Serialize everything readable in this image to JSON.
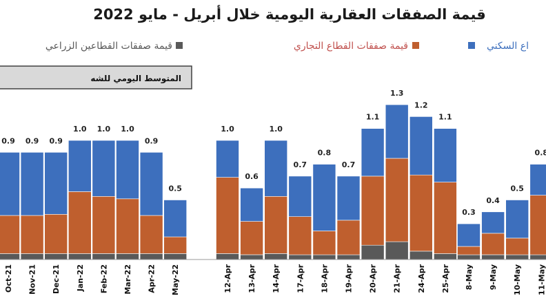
{
  "chart_data": {
    "type": "bar",
    "title": "قيمة الصفقات العقارية اليومية خلال أبريل - مايو 2022",
    "legend": [
      {
        "name": "قيمة صفقات القطاعين الزراعي",
        "color": "#595959"
      },
      {
        "name": "قيمة صفقات القطاع التجاري",
        "color": "#bf5f2e"
      },
      {
        "name": "اع السكني",
        "color": "#3d6fbd"
      }
    ],
    "monthly_box_label": "المتوسط اليومي للشه",
    "categories": [
      "Oct-21",
      "Nov-21",
      "Dec-21",
      "Jan-22",
      "Feb-22",
      "Mar-22",
      "Apr-22",
      "May-22",
      "12-Apr",
      "13-Apr",
      "14-Apr",
      "17-Apr",
      "18-Apr",
      "19-Apr",
      "20-Apr",
      "21-Apr",
      "24-Apr",
      "25-Apr",
      "8-May",
      "9-May",
      "10-May",
      "11-May"
    ],
    "groups": [
      {
        "name": "monthly",
        "categories": [
          "Oct-21",
          "Nov-21",
          "Dec-21",
          "Jan-22",
          "Feb-22",
          "Mar-22",
          "Apr-22",
          "May-22"
        ]
      },
      {
        "name": "daily",
        "categories": [
          "12-Apr",
          "13-Apr",
          "14-Apr",
          "17-Apr",
          "18-Apr",
          "19-Apr",
          "20-Apr",
          "21-Apr",
          "24-Apr",
          "25-Apr",
          "8-May",
          "9-May",
          "10-May",
          "11-May"
        ]
      }
    ],
    "totals": [
      0.9,
      0.9,
      0.9,
      1.0,
      1.0,
      1.0,
      0.9,
      0.5,
      1.0,
      0.6,
      1.0,
      0.7,
      0.8,
      0.7,
      1.1,
      1.3,
      1.2,
      1.1,
      0.3,
      0.4,
      0.5,
      0.8
    ],
    "total_labels": [
      "0.9",
      "0.9",
      "0.9",
      "1.0",
      "1.0",
      "1.0",
      "0.9",
      "0.5",
      "1.0",
      "0.6",
      "1.0",
      "0.7",
      "0.8",
      "0.7",
      "1.1",
      "1.3",
      "1.2",
      "1.1",
      "0.3",
      "0.4",
      "0.5",
      "0.8"
    ],
    "series": [
      {
        "name": "قيمة صفقات القطاعين الزراعي",
        "color": "#595959",
        "values": [
          0.05,
          0.05,
          0.05,
          0.05,
          0.05,
          0.05,
          0.05,
          0.05,
          0.05,
          0.04,
          0.05,
          0.04,
          0.04,
          0.04,
          0.12,
          0.15,
          0.07,
          0.05,
          0.04,
          0.04,
          0.04,
          0.04
        ]
      },
      {
        "name": "قيمة صفقات القطاع التجاري",
        "color": "#bf5f2e",
        "values": [
          0.32,
          0.32,
          0.33,
          0.52,
          0.48,
          0.46,
          0.32,
          0.14,
          0.64,
          0.28,
          0.48,
          0.32,
          0.2,
          0.29,
          0.58,
          0.7,
          0.64,
          0.6,
          0.07,
          0.18,
          0.14,
          0.5
        ]
      },
      {
        "name": "قيمة صفقات القطاع السكني",
        "color": "#3d6fbd",
        "values": [
          0.53,
          0.53,
          0.52,
          0.43,
          0.47,
          0.49,
          0.53,
          0.31,
          0.31,
          0.28,
          0.47,
          0.34,
          0.56,
          0.37,
          0.4,
          0.45,
          0.49,
          0.45,
          0.19,
          0.18,
          0.32,
          0.26
        ]
      }
    ],
    "ylim": [
      0,
      1.4
    ],
    "grid": false
  }
}
